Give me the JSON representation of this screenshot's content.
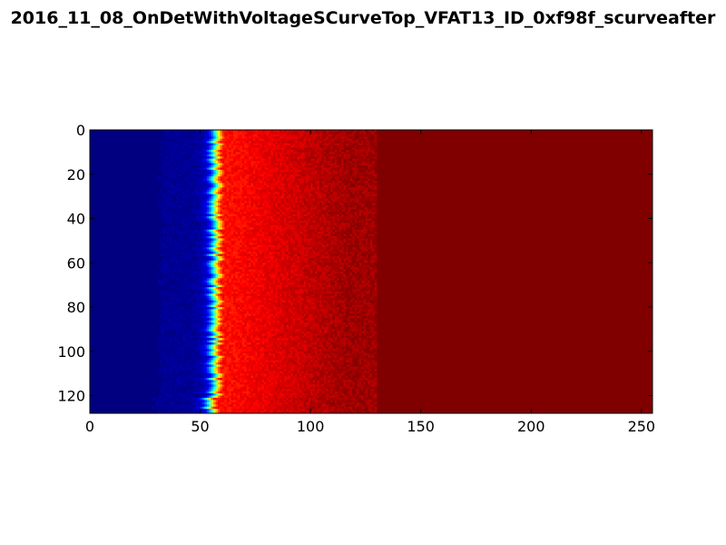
{
  "chart_data": {
    "type": "heatmap",
    "title": "2016_11_08_OnDetWithVoltageSCurveTop_VFAT13_ID_0xf98f_scurveafter",
    "xlabel": "",
    "ylabel": "",
    "xlim": [
      0,
      255
    ],
    "ylim": [
      128,
      0
    ],
    "x_ticks": [
      "0",
      "50",
      "100",
      "150",
      "200",
      "250"
    ],
    "y_ticks": [
      "0",
      "20",
      "40",
      "60",
      "80",
      "100",
      "120"
    ],
    "x_tick_values": [
      0,
      50,
      100,
      150,
      200,
      250
    ],
    "y_tick_values": [
      0,
      20,
      40,
      60,
      80,
      100,
      120
    ],
    "rows": 128,
    "cols": 255,
    "colormap": "jet",
    "value_range": [
      0,
      1
    ],
    "transition": {
      "center_x": 57,
      "width": 4,
      "description_values": "low (blue) left of ~50, high (dark red) right of ~65"
    },
    "colors": {
      "low": "#00007f",
      "high": "#7f0000"
    }
  }
}
